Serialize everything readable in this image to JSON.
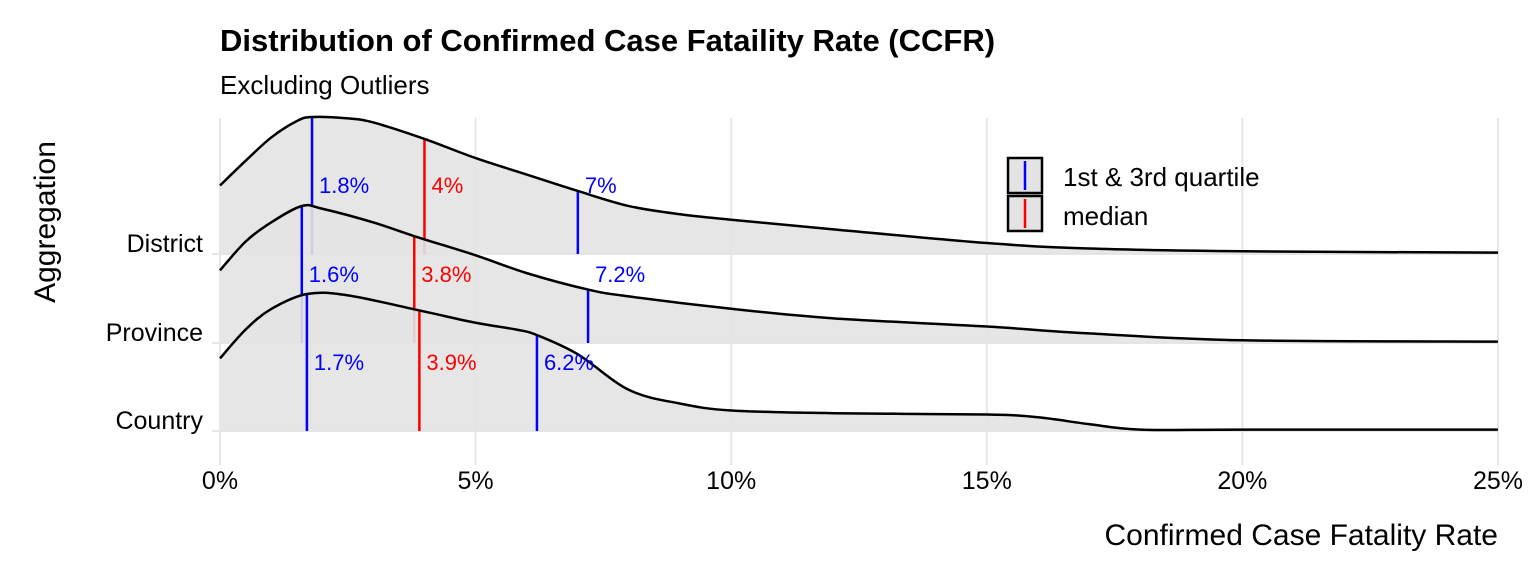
{
  "chart_data": {
    "type": "ridgeline",
    "title": "Distribution of Confirmed Case Fataility Rate (CCFR)",
    "subtitle": "Excluding Outliers",
    "xlabel": "Confirmed Case Fatality Rate",
    "ylabel": "Aggregation",
    "xlim": [
      0,
      25
    ],
    "x_ticks": [
      0,
      5,
      10,
      15,
      20,
      25
    ],
    "x_tick_labels": [
      "0%",
      "5%",
      "10%",
      "15%",
      "20%",
      "25%"
    ],
    "grid": true,
    "legend_position": "top-right",
    "legend": [
      {
        "label": "1st & 3rd quartile",
        "color": "#0000ff"
      },
      {
        "label": "median",
        "color": "#ff0000"
      }
    ],
    "colors": {
      "quartile": "#0000ff",
      "median": "#ff0000",
      "fill": "#e3e3e3",
      "outline": "#000000"
    },
    "categories": [
      "District",
      "Province",
      "Country"
    ],
    "series": [
      {
        "name": "District",
        "q1": 1.8,
        "median": 4.0,
        "q3": 7.0,
        "q1_label": "1.8%",
        "median_label": "4%",
        "q3_label": "7%",
        "density": [
          [
            0,
            0.5
          ],
          [
            0.5,
            0.68
          ],
          [
            1,
            0.85
          ],
          [
            1.5,
            0.97
          ],
          [
            1.8,
            1.0
          ],
          [
            2.5,
            0.99
          ],
          [
            3,
            0.96
          ],
          [
            4,
            0.84
          ],
          [
            5,
            0.7
          ],
          [
            6,
            0.58
          ],
          [
            7,
            0.46
          ],
          [
            8,
            0.35
          ],
          [
            9,
            0.29
          ],
          [
            10,
            0.25
          ],
          [
            12,
            0.18
          ],
          [
            15,
            0.08
          ],
          [
            17,
            0.04
          ],
          [
            20,
            0.02
          ],
          [
            25,
            0.01
          ]
        ]
      },
      {
        "name": "Province",
        "q1": 1.6,
        "median": 3.8,
        "q3": 7.2,
        "q1_label": "1.6%",
        "median_label": "3.8%",
        "q3_label": "7.2%",
        "density": [
          [
            0,
            0.53
          ],
          [
            0.5,
            0.74
          ],
          [
            1,
            0.88
          ],
          [
            1.6,
            1.0
          ],
          [
            2,
            0.98
          ],
          [
            3,
            0.88
          ],
          [
            3.8,
            0.78
          ],
          [
            5,
            0.64
          ],
          [
            6,
            0.51
          ],
          [
            7.2,
            0.39
          ],
          [
            8,
            0.34
          ],
          [
            10,
            0.25
          ],
          [
            12,
            0.18
          ],
          [
            15,
            0.12
          ],
          [
            17,
            0.07
          ],
          [
            20,
            0.02
          ],
          [
            25,
            0.01
          ]
        ]
      },
      {
        "name": "Country",
        "q1": 1.7,
        "median": 3.9,
        "q3": 6.2,
        "q1_label": "1.7%",
        "median_label": "3.9%",
        "q3_label": "6.2%",
        "density": [
          [
            0,
            0.53
          ],
          [
            0.5,
            0.74
          ],
          [
            1,
            0.89
          ],
          [
            1.7,
            1.0
          ],
          [
            2.5,
            0.99
          ],
          [
            3.9,
            0.88
          ],
          [
            5,
            0.79
          ],
          [
            5.8,
            0.74
          ],
          [
            6.2,
            0.7
          ],
          [
            7,
            0.56
          ],
          [
            8,
            0.3
          ],
          [
            9,
            0.2
          ],
          [
            10,
            0.15
          ],
          [
            12,
            0.13
          ],
          [
            15,
            0.12
          ],
          [
            16,
            0.1
          ],
          [
            17,
            0.05
          ],
          [
            18,
            0.01
          ],
          [
            20,
            0.01
          ],
          [
            25,
            0.01
          ]
        ]
      }
    ]
  }
}
